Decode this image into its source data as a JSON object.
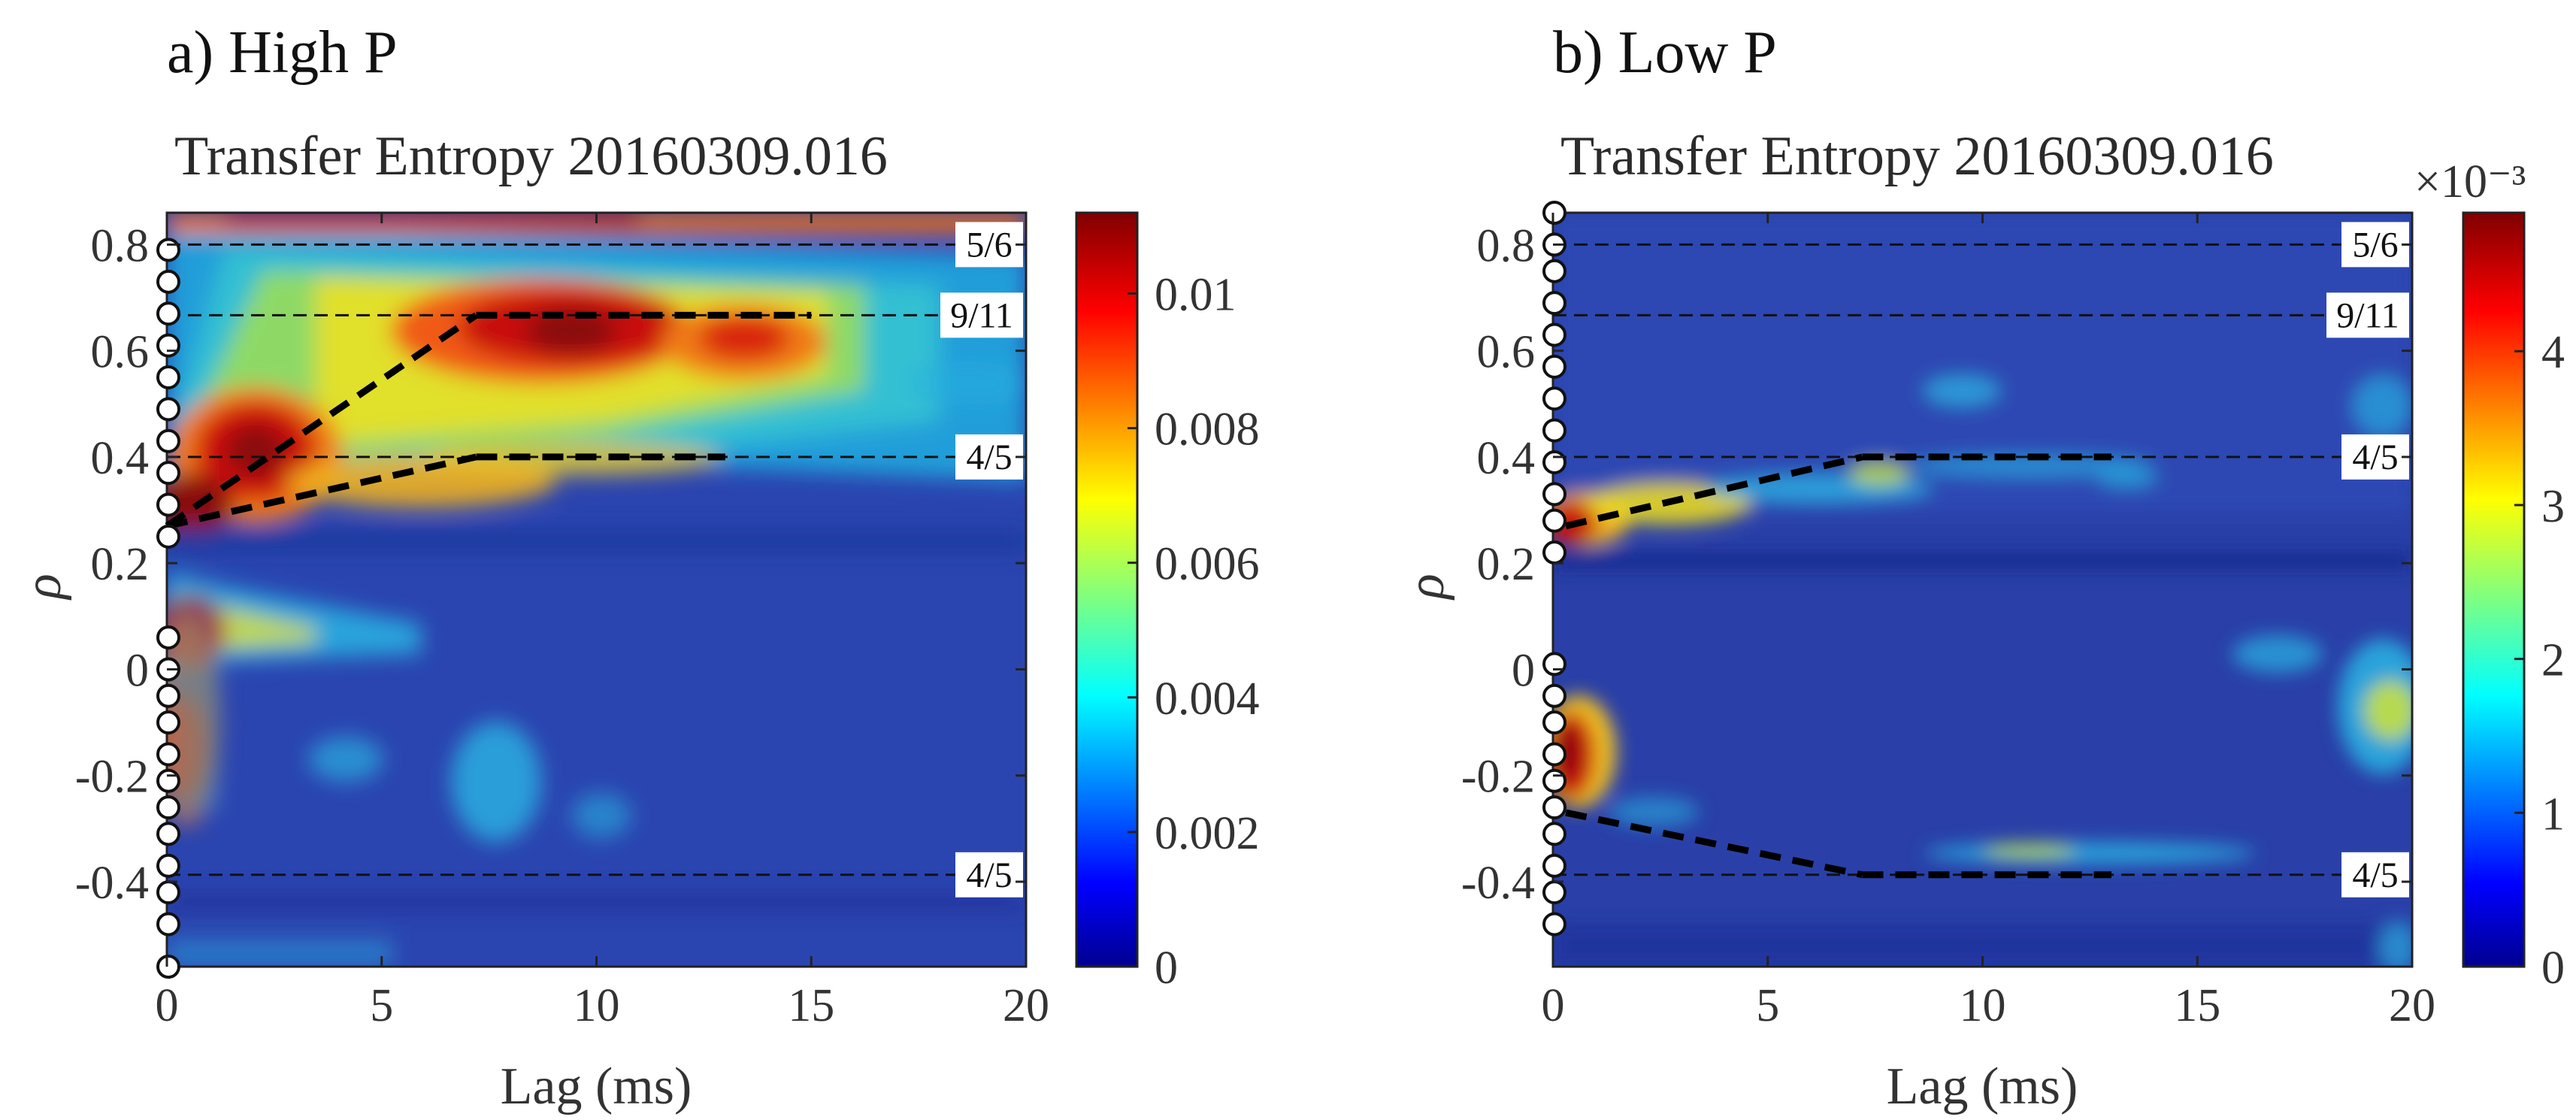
{
  "figure": {
    "panels": [
      {
        "id": "a",
        "label": "a) High P",
        "title": "Transfer Entropy 20160309.016",
        "xlabel": "Lag (ms)",
        "ylabel": "ρ",
        "x_ticks": [
          "0",
          "5",
          "10",
          "15",
          "20"
        ],
        "y_ticks": [
          "0.8",
          "0.6",
          "0.4",
          "0.2",
          "0",
          "-0.2",
          "-0.4"
        ],
        "colorbar_ticks": [
          "0.01",
          "0.008",
          "0.006",
          "0.004",
          "0.002",
          "0"
        ],
        "colorbar_exponent": "",
        "resonances": [
          {
            "label": "5/6",
            "rho": 0.8
          },
          {
            "label": "9/11",
            "rho": 0.667
          },
          {
            "label": "4/5",
            "rho": 0.4
          },
          {
            "label": "4/5",
            "rho": -0.387
          }
        ]
      },
      {
        "id": "b",
        "label": "b) Low P",
        "title": "Transfer Entropy 20160309.016",
        "xlabel": "Lag (ms)",
        "ylabel": "ρ",
        "x_ticks": [
          "0",
          "5",
          "10",
          "15",
          "20"
        ],
        "y_ticks": [
          "0.8",
          "0.6",
          "0.4",
          "0.2",
          "0",
          "-0.2",
          "-0.4"
        ],
        "colorbar_ticks": [
          "4",
          "3",
          "2",
          "1",
          "0"
        ],
        "colorbar_exponent": "×10⁻³",
        "resonances": [
          {
            "label": "5/6",
            "rho": 0.8
          },
          {
            "label": "9/11",
            "rho": 0.667
          },
          {
            "label": "4/5",
            "rho": 0.4
          },
          {
            "label": "4/5",
            "rho": -0.387
          }
        ]
      }
    ]
  },
  "chart_data": [
    {
      "type": "heatmap",
      "title": "Transfer Entropy 20160309.016",
      "panel_label": "a) High P",
      "xlabel": "Lag (ms)",
      "ylabel": "ρ",
      "xlim": [
        0,
        20
      ],
      "ylim": [
        -0.56,
        0.86
      ],
      "colorbar_range": [
        0,
        0.0112
      ],
      "colormap": "jet",
      "hot_regions": [
        {
          "lag": [
            0,
            1
          ],
          "rho": [
            0.25,
            0.33
          ],
          "value": 0.0105
        },
        {
          "lag": [
            1,
            4
          ],
          "rho": [
            0.33,
            0.48
          ],
          "value": 0.0105
        },
        {
          "lag": [
            5,
            11
          ],
          "rho": [
            0.56,
            0.72
          ],
          "value": 0.0105
        },
        {
          "lag": [
            11,
            15
          ],
          "rho": [
            0.57,
            0.68
          ],
          "value": 0.0095
        },
        {
          "lag": [
            0,
            2
          ],
          "rho": [
            -0.3,
            0.12
          ],
          "value": 0.0105
        },
        {
          "lag": [
            0,
            20
          ],
          "rho": [
            0.82,
            0.86
          ],
          "value": 0.0095
        }
      ],
      "circles_rho": [
        0.79,
        0.73,
        0.67,
        0.61,
        0.55,
        0.49,
        0.43,
        0.37,
        0.31,
        0.25,
        0.06,
        0.0,
        -0.05,
        -0.1,
        -0.16,
        -0.21,
        -0.26,
        -0.31,
        -0.37,
        -0.42,
        -0.48,
        -0.56
      ],
      "guide_lines": [
        {
          "lag": [
            0,
            7.2
          ],
          "rho": [
            0.27,
            0.667
          ]
        },
        {
          "lag": [
            7.2,
            15
          ],
          "rho": [
            0.667,
            0.667
          ]
        },
        {
          "lag": [
            0,
            7.2
          ],
          "rho": [
            0.27,
            0.4
          ]
        },
        {
          "lag": [
            7.2,
            13
          ],
          "rho": [
            0.4,
            0.4
          ]
        }
      ]
    },
    {
      "type": "heatmap",
      "title": "Transfer Entropy 20160309.016",
      "panel_label": "b) Low P",
      "xlabel": "Lag (ms)",
      "ylabel": "ρ",
      "xlim": [
        0,
        20
      ],
      "ylim": [
        -0.56,
        0.86
      ],
      "colorbar_range": [
        0,
        0.0049
      ],
      "colormap": "jet",
      "hot_regions": [
        {
          "lag": [
            0,
            1
          ],
          "rho": [
            0.22,
            0.32
          ],
          "value": 0.0045
        },
        {
          "lag": [
            1,
            4
          ],
          "rho": [
            0.26,
            0.34
          ],
          "value": 0.003
        },
        {
          "lag": [
            6,
            9
          ],
          "rho": [
            0.36,
            0.4
          ],
          "value": 0.0025
        },
        {
          "lag": [
            0,
            1.2
          ],
          "rho": [
            -0.3,
            -0.1
          ],
          "value": 0.0047
        },
        {
          "lag": [
            7,
            14
          ],
          "rho": [
            -0.37,
            -0.35
          ],
          "value": 0.0025
        },
        {
          "lag": [
            18,
            20
          ],
          "rho": [
            -0.2,
            0.0
          ],
          "value": 0.003
        }
      ],
      "circles_rho": [
        0.86,
        0.8,
        0.75,
        0.69,
        0.63,
        0.57,
        0.51,
        0.45,
        0.39,
        0.33,
        0.28,
        0.22,
        0.01,
        -0.05,
        -0.1,
        -0.16,
        -0.21,
        -0.26,
        -0.31,
        -0.37,
        -0.42,
        -0.48
      ],
      "guide_lines": [
        {
          "lag": [
            0.3,
            7.2
          ],
          "rho": [
            0.27,
            0.4
          ]
        },
        {
          "lag": [
            7.2,
            13
          ],
          "rho": [
            0.4,
            0.4
          ]
        },
        {
          "lag": [
            0.3,
            7.2
          ],
          "rho": [
            -0.27,
            -0.387
          ]
        },
        {
          "lag": [
            7.2,
            13
          ],
          "rho": [
            -0.387,
            -0.387
          ]
        }
      ]
    }
  ]
}
